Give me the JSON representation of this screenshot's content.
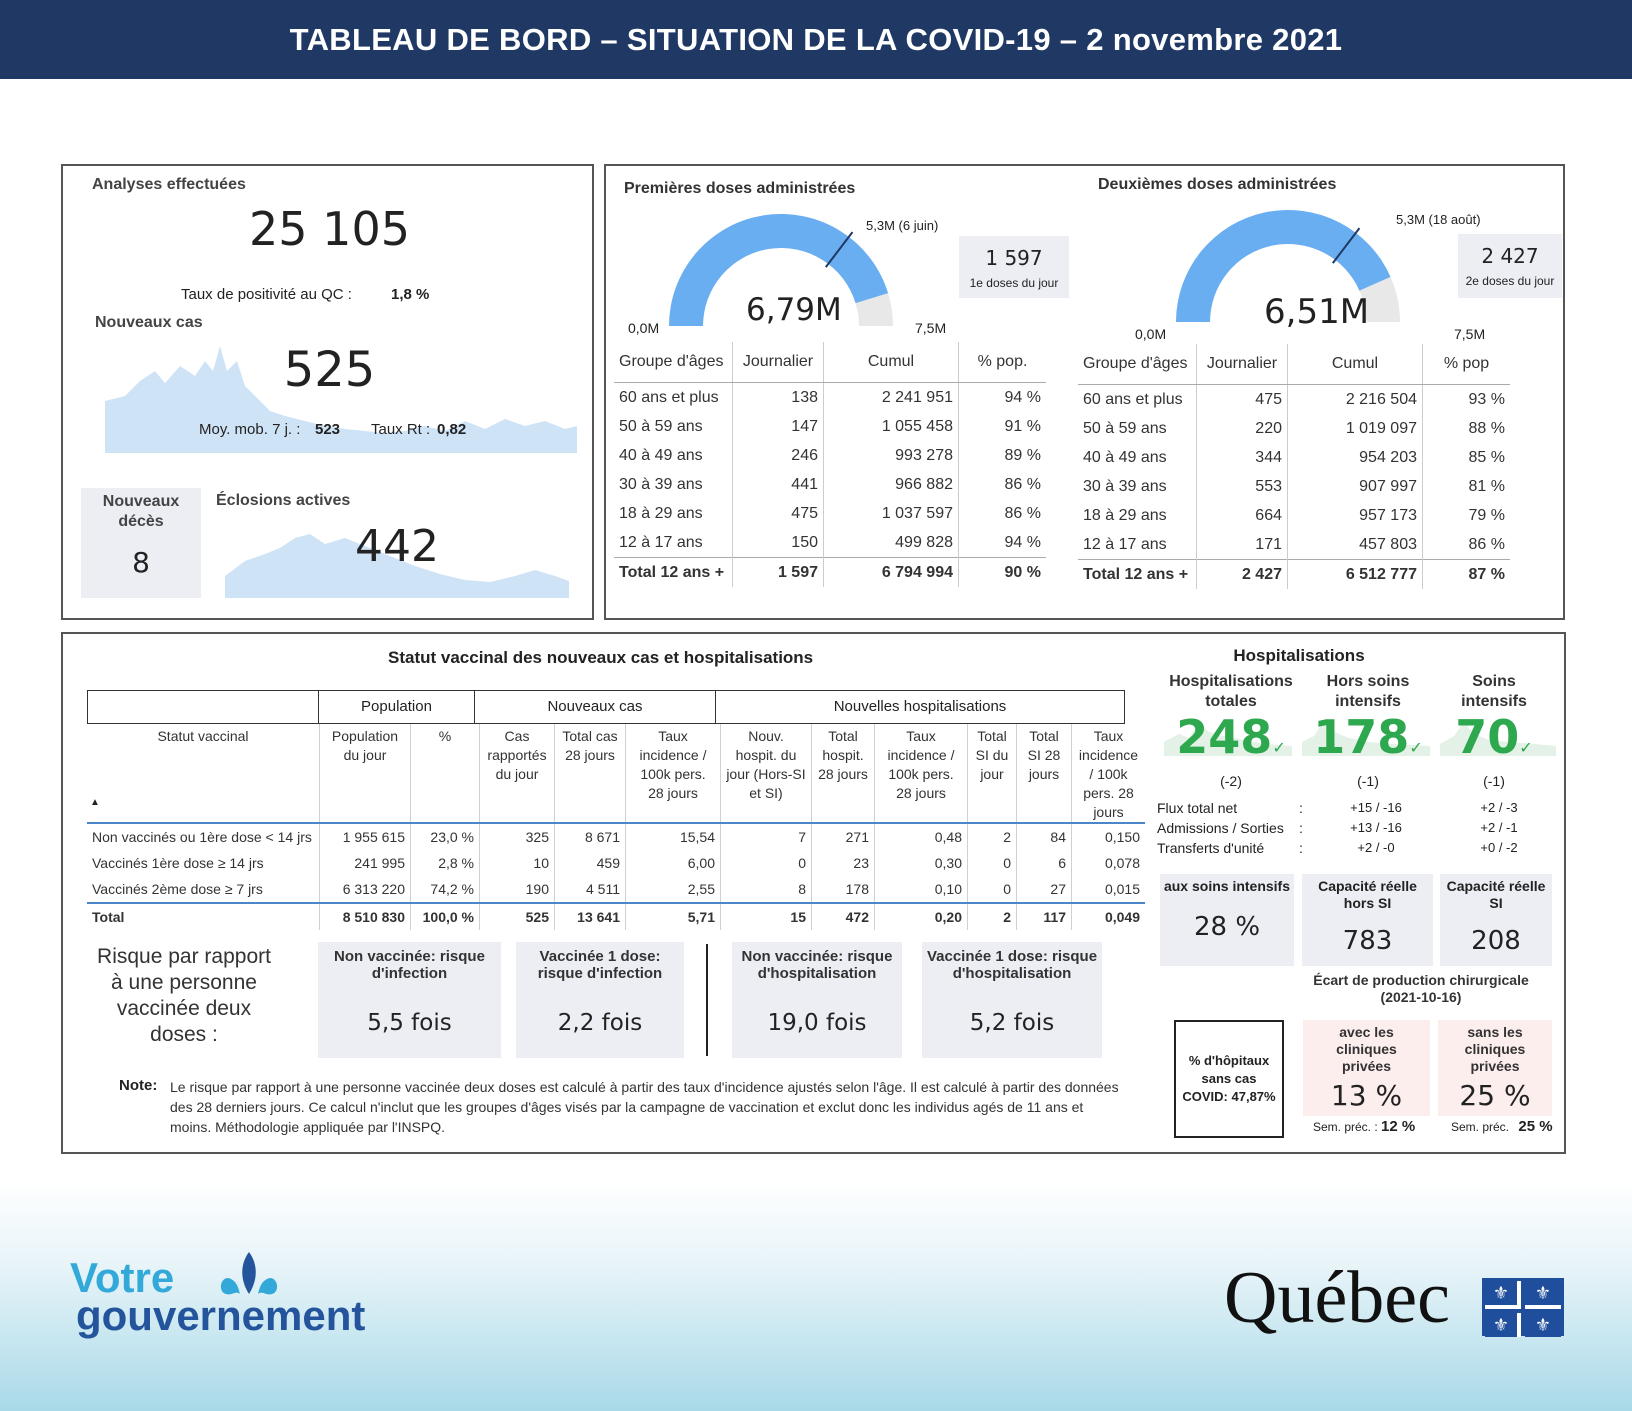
{
  "header": {
    "title": "TABLEAU DE BORD – SITUATION DE LA COVID-19 – 2 novembre 2021"
  },
  "tests": {
    "title": "Analyses effectuées",
    "value": "25 105",
    "positivity_label": "Taux de positivité au QC :",
    "positivity_value": "1,8 %"
  },
  "new_cases": {
    "title": "Nouveaux cas",
    "value": "525",
    "avg_label": "Moy. mob. 7 j. :",
    "avg_value": "523",
    "rt_label": "Taux Rt :",
    "rt_value": "0,82"
  },
  "deaths": {
    "title": "Nouveaux décès",
    "value": "8"
  },
  "outbreaks": {
    "title": "Éclosions actives",
    "value": "442"
  },
  "first_doses": {
    "title": "Premières doses administrées",
    "gauge_value": "6,79M",
    "gauge_fill": 0.905,
    "target_marker": 0.707,
    "min": "0,0M",
    "max": "7,5M",
    "target_label": "5,3M",
    "target_date": "(6 juin)",
    "daily_value": "1 597",
    "daily_label": "1e doses du jour",
    "columns": [
      "Groupe d'âges",
      "Journalier",
      "Cumul",
      "% pop."
    ],
    "rows": [
      [
        "60 ans et plus",
        "138",
        "2 241 951",
        "94 %"
      ],
      [
        "50 à 59 ans",
        "147",
        "1 055 458",
        "91 %"
      ],
      [
        "40 à 49 ans",
        "246",
        "993 278",
        "89 %"
      ],
      [
        "30 à 39 ans",
        "441",
        "966 882",
        "86 %"
      ],
      [
        "18 à 29 ans",
        "475",
        "1 037 597",
        "86 %"
      ],
      [
        "12 à 17 ans",
        "150",
        "499 828",
        "94 %"
      ]
    ],
    "total": [
      "Total 12 ans +",
      "1 597",
      "6 794 994",
      "90 %"
    ]
  },
  "second_doses": {
    "title": "Deuxièmes doses administrées",
    "gauge_value": "6,51M",
    "gauge_fill": 0.868,
    "target_marker": 0.707,
    "min": "0,0M",
    "max": "7,5M",
    "target_label": "5,3M",
    "target_date": "(18 août)",
    "daily_value": "2 427",
    "daily_label": "2e doses du jour",
    "columns": [
      "Groupe d'âges",
      "Journalier",
      "Cumul",
      "% pop"
    ],
    "rows": [
      [
        "60 ans et plus",
        "475",
        "2 216 504",
        "93 %"
      ],
      [
        "50 à 59 ans",
        "220",
        "1 019 097",
        "88 %"
      ],
      [
        "40 à 49 ans",
        "344",
        "954 203",
        "85 %"
      ],
      [
        "30 à 39 ans",
        "553",
        "907 997",
        "81 %"
      ],
      [
        "18 à 29 ans",
        "664",
        "957 173",
        "79 %"
      ],
      [
        "12 à 17 ans",
        "171",
        "457 803",
        "86 %"
      ]
    ],
    "total": [
      "Total 12 ans +",
      "2 427",
      "6 512 777",
      "87 %"
    ]
  },
  "vaccine_status": {
    "title": "Statut vaccinal des nouveaux cas et hospitalisations",
    "groups": [
      "Population",
      "Nouveaux cas",
      "Nouvelles hospitalisations"
    ],
    "columns": [
      "Statut vaccinal",
      "Population du jour",
      "%",
      "Cas rapportés du jour",
      "Total cas 28 jours",
      "Taux incidence / 100k pers. 28 jours",
      "Nouv. hospit. du jour (Hors-SI et SI)",
      "Total hospit. 28 jours",
      "Taux incidence / 100k pers. 28 jours",
      "Total SI du jour",
      "Total SI 28 jours",
      "Taux incidence / 100k pers. 28 jours"
    ],
    "rows": [
      [
        "Non vaccinés ou 1ère dose < 14 jrs",
        "1 955 615",
        "23,0 %",
        "325",
        "8 671",
        "15,54",
        "7",
        "271",
        "0,48",
        "2",
        "84",
        "0,150"
      ],
      [
        "Vaccinés 1ère dose ≥ 14 jrs",
        "241 995",
        "2,8 %",
        "10",
        "459",
        "6,00",
        "0",
        "23",
        "0,30",
        "0",
        "6",
        "0,078"
      ],
      [
        "Vaccinés 2ème dose ≥ 7 jrs",
        "6 313 220",
        "74,2 %",
        "190",
        "4 511",
        "2,55",
        "8",
        "178",
        "0,10",
        "0",
        "27",
        "0,015"
      ]
    ],
    "total": [
      "Total",
      "8 510 830",
      "100,0 %",
      "525",
      "13 641",
      "5,71",
      "15",
      "472",
      "0,20",
      "2",
      "117",
      "0,049"
    ]
  },
  "risk": {
    "label": "Risque par rapport à une personne vaccinée deux doses :",
    "boxes": [
      {
        "title": "Non vaccinée: risque d'infection",
        "value": "5,5 fois"
      },
      {
        "title": "Vaccinée 1 dose: risque d'infection",
        "value": "2,2 fois"
      },
      {
        "title": "Non vaccinée: risque d'hospitalisation",
        "value": "19,0 fois"
      },
      {
        "title": "Vaccinée 1 dose: risque d'hospitalisation",
        "value": "5,2 fois"
      }
    ],
    "note_label": "Note:",
    "note": "Le risque par rapport à une personne vaccinée deux doses est calculé à partir des taux d'incidence ajustés selon l'âge. Il est calculé à partir des données des 28 derniers jours. Ce calcul n'inclut que les groupes d'âges visés par la campagne de vaccination et exclut donc les individus agés de 11 ans et moins. Méthodologie appliquée par l'INSPQ."
  },
  "hospitalisations": {
    "title": "Hospitalisations",
    "cols": [
      {
        "title": "Hospitalisations totales",
        "value": "248",
        "delta": "(-2)"
      },
      {
        "title": "Hors soins intensifs",
        "value": "178",
        "delta": "(-1)"
      },
      {
        "title": "Soins intensifs",
        "value": "70",
        "delta": "(-1)"
      }
    ],
    "flux_labels": [
      "Flux total net",
      "Admissions / Sorties",
      "Transferts d'unité"
    ],
    "colon": ":",
    "flux_cols": [
      [
        "+15 / -16",
        "+13 / -16",
        "+2 / -0"
      ],
      [
        "+2 / -3",
        "+2 / -1",
        "+0 / -2"
      ]
    ],
    "capacity": [
      {
        "title": "aux soins intensifs",
        "value": "28 %"
      },
      {
        "title": "Capacité réelle hors SI",
        "value": "783"
      },
      {
        "title": "Capacité réelle SI",
        "value": "208"
      }
    ],
    "surgery_title": "Écart de production chirurgicale (2021-10-16)",
    "hospitals_no_covid": "% d'hôpitaux sans cas COVID: 47,87%",
    "surgery": [
      {
        "title": "avec les cliniques privées",
        "value": "13 %",
        "prev_label": "Sem. préc. :",
        "prev_value": "12 %"
      },
      {
        "title": "sans les cliniques privées",
        "value": "25 %",
        "prev_label": "Sem. préc.",
        "prev_value": "25 %"
      }
    ]
  },
  "footer": {
    "votre": "Votre",
    "gouvernement": "gouvernement",
    "quebec": "Québec"
  },
  "colors": {
    "navy": "#1f3864",
    "gauge_blue": "#6aaef2",
    "green": "#2ea84f",
    "area": "#cfe3f7"
  }
}
